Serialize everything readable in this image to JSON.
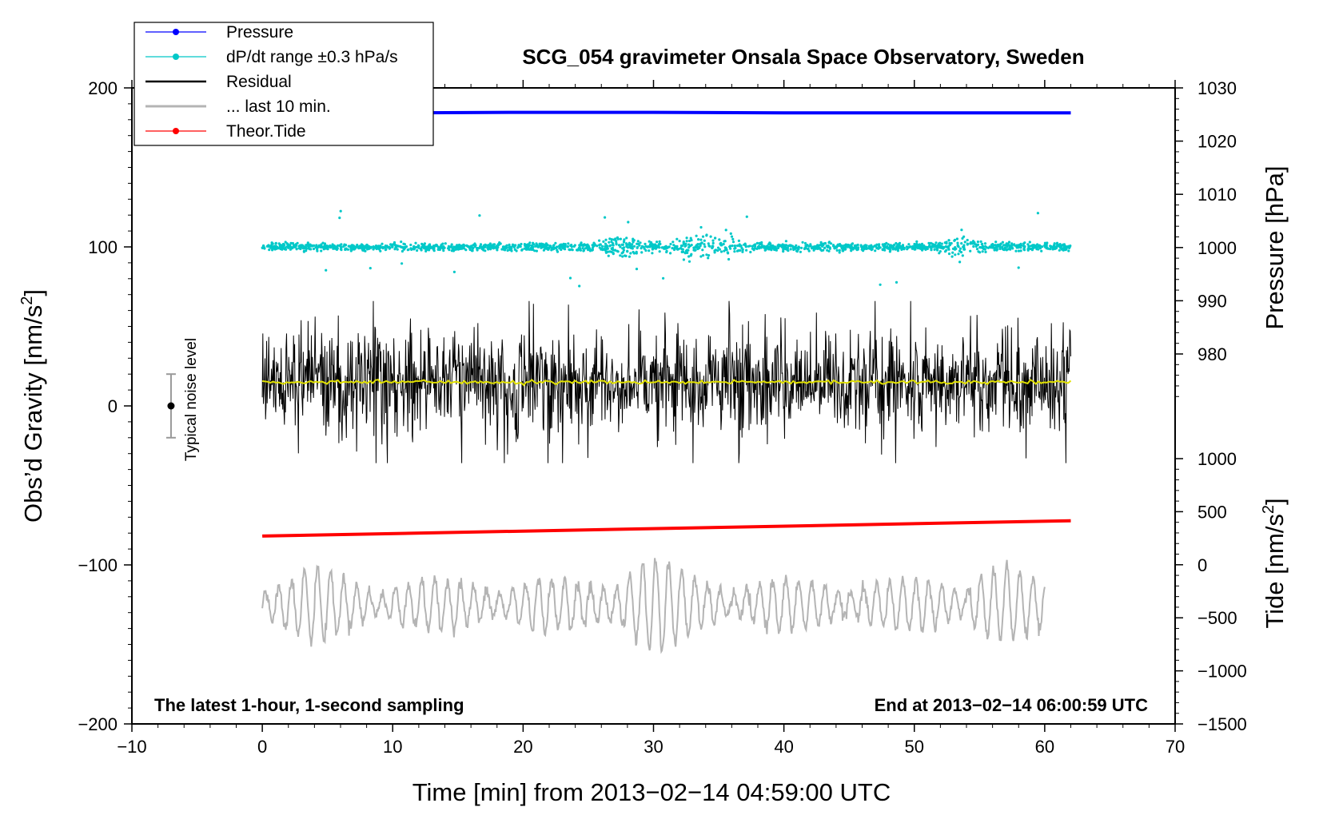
{
  "chart_data": {
    "type": "line",
    "title": "SCG_054 gravimeter Onsala Space Observatory, Sweden",
    "xlabel": "Time [min] from 2013−02−14 04:59:00 UTC",
    "ylabel": "Obs’d Gravity [nm/s",
    "ylabel_sup": "2",
    "ylabel_close": "]",
    "y2label_top": "Pressure [hPa]",
    "y2label_bottom": "Tide [nm/s",
    "y2label_bottom_sup": "2",
    "y2label_bottom_close": "]",
    "xlim": [
      -10,
      70
    ],
    "ylim": [
      -200,
      200
    ],
    "pressure_axis_lim": [
      970,
      1030
    ],
    "tide_axis_lim": [
      -1500,
      1000
    ],
    "x_ticks": [
      -10,
      0,
      10,
      20,
      30,
      40,
      50,
      60,
      70
    ],
    "x_tick_labels": [
      "−10",
      "0",
      "10",
      "20",
      "30",
      "40",
      "50",
      "60",
      "70"
    ],
    "y_ticks": [
      -200,
      -100,
      0,
      100,
      200
    ],
    "y_tick_labels": [
      "−200",
      "−100",
      "0",
      "100",
      "200"
    ],
    "pressure_ticks": [
      980,
      990,
      1000,
      1010,
      1020,
      1030
    ],
    "pressure_tick_labels": [
      "980",
      "990",
      "1000",
      "1010",
      "1020",
      "1030"
    ],
    "tide_ticks": [
      -1500,
      -1000,
      -500,
      0,
      500,
      1000
    ],
    "tide_tick_labels": [
      "−1500",
      "−1000",
      "−500",
      "0",
      "500",
      "1000"
    ],
    "legend_position": "top-left",
    "legend": [
      {
        "label": "Pressure",
        "color": "#0000ff",
        "style": "line-dot"
      },
      {
        "label": "dP/dt range ±0.3 hPa/s",
        "color": "#00c8c8",
        "style": "line-dot"
      },
      {
        "label": "Residual",
        "color": "#000000",
        "style": "line"
      },
      {
        "label": "... last 10 min.",
        "color": "#b4b4b4",
        "style": "line"
      },
      {
        "label": "Theor.Tide",
        "color": "#ff0000",
        "style": "line-dot"
      }
    ],
    "series": [
      {
        "name": "Pressure",
        "axis": "pressure",
        "x": [
          0,
          10,
          20,
          30,
          40,
          50,
          62
        ],
        "y": [
          1025.3,
          1025.3,
          1025.4,
          1025.4,
          1025.3,
          1025.3,
          1025.3
        ],
        "color": "#0000ff"
      },
      {
        "name": "dP/dt range ±0.3 hPa/s",
        "axis": "gravity",
        "x_range": [
          0,
          62
        ],
        "center": 100,
        "spread": 8,
        "color": "#00c8c8"
      },
      {
        "name": "Residual",
        "axis": "gravity",
        "x_range": [
          0,
          62
        ],
        "center": 15,
        "min": -36,
        "max": 66,
        "color": "#000000"
      },
      {
        "name": "... last 10 min.",
        "axis": "gravity",
        "x_range": [
          0,
          60
        ],
        "center": -125,
        "min": -162,
        "max": -77,
        "color": "#b4b4b4"
      },
      {
        "name": "Theor.Tide",
        "axis": "tide",
        "x": [
          0,
          62
        ],
        "y": [
          270,
          415
        ],
        "color": "#ff0000"
      }
    ],
    "annotations": {
      "noise_label": "Typical noise level",
      "noise_bar": {
        "x": -7,
        "center": 0,
        "half_range": 20
      },
      "bottom_left": "The latest 1-hour, 1-second sampling",
      "bottom_right": "End at 2013−02−14 06:00:59 UTC"
    }
  }
}
